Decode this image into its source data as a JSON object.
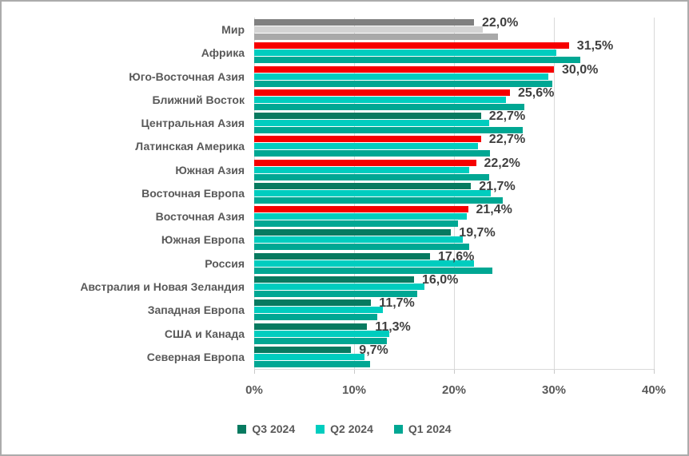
{
  "chart_data": {
    "type": "bar",
    "orientation": "horizontal",
    "title": "",
    "xlabel": "",
    "ylabel": "",
    "xlim": [
      0,
      40
    ],
    "x_ticks": [
      "0%",
      "10%",
      "20%",
      "30%",
      "40%"
    ],
    "x_tick_values": [
      0,
      10,
      20,
      30,
      40
    ],
    "grid": "vertical",
    "legend_position": "bottom",
    "categories": [
      "Мир",
      "Африка",
      "Юго-Восточная Азия",
      "Ближний Восток",
      "Центральная Азия",
      "Латинская Америка",
      "Южная Азия",
      "Восточная Европа",
      "Восточная Азия",
      "Южная Европа",
      "Россия",
      "Австралия и Новая Зеландия",
      "Западная Европа",
      "США и Канада",
      "Северная Европа"
    ],
    "series": [
      {
        "name": "Q3 2024",
        "values": [
          22.0,
          31.5,
          30.0,
          25.6,
          22.7,
          22.7,
          22.2,
          21.7,
          21.4,
          19.7,
          17.6,
          16.0,
          11.7,
          11.3,
          9.7
        ],
        "data_labels": [
          "22,0%",
          "31,5%",
          "30,0%",
          "25,6%",
          "22,7%",
          "22,7%",
          "22,2%",
          "21,7%",
          "21,4%",
          "19,7%",
          "17,6%",
          "16,0%",
          "11,7%",
          "11,3%",
          "9,7%"
        ]
      },
      {
        "name": "Q2 2024",
        "values": [
          22.9,
          30.2,
          29.4,
          25.2,
          23.5,
          22.4,
          21.5,
          23.7,
          21.3,
          20.9,
          22.0,
          17.0,
          12.9,
          13.5,
          11.0
        ]
      },
      {
        "name": "Q1 2024",
        "values": [
          24.4,
          32.6,
          29.8,
          27.0,
          26.9,
          23.6,
          23.5,
          24.9,
          20.4,
          21.5,
          23.8,
          16.3,
          12.3,
          13.3,
          11.6
        ]
      }
    ],
    "q3_bar_style_per_category": [
      "world",
      "red",
      "red",
      "red",
      "green",
      "red",
      "red",
      "green",
      "red",
      "green",
      "green",
      "green",
      "green",
      "green",
      "green"
    ],
    "colors": {
      "q3_green": "#077a60",
      "q3_red": "#f60000",
      "q2_teal": "#00cdbf",
      "q1_teal": "#00a793",
      "world_q3_gray": "#808080",
      "world_q2_gray": "#d3d3d3",
      "world_q1_gray": "#a9a9a9",
      "gridline": "#d9d9d9",
      "axis_text": "#595959",
      "data_label_text": "#3f3f3f"
    }
  },
  "legend": {
    "items": [
      "Q3 2024",
      "Q2 2024",
      "Q1 2024"
    ]
  }
}
